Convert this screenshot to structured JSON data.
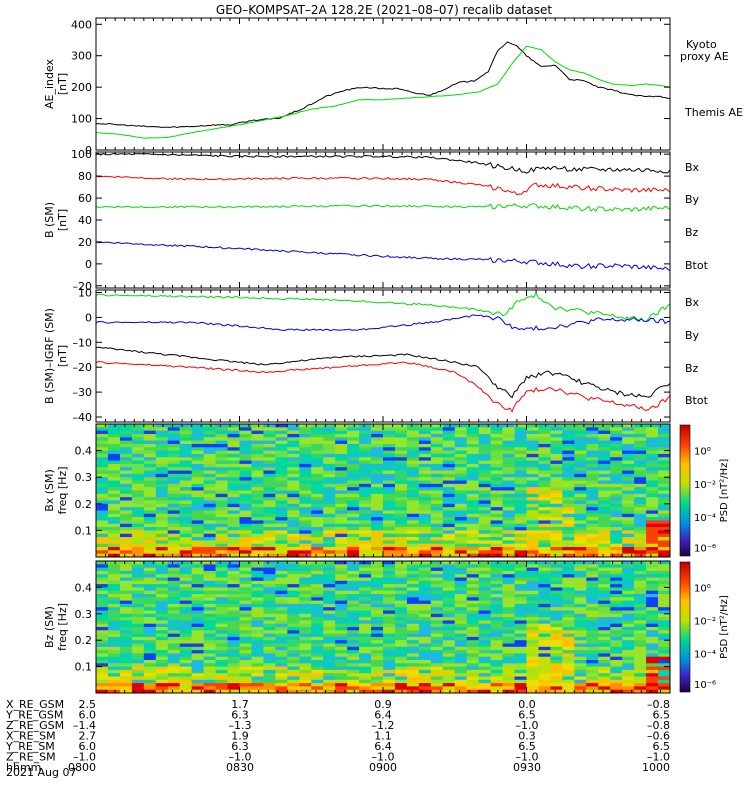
{
  "title": "GEO–KOMPSAT–2A 128.2E (2021–08–07) recalib dataset",
  "colors": {
    "black": "#000000",
    "red": "#ff0000",
    "green": "#00dd00",
    "blue": "#0000dd"
  },
  "chart_data": [
    {
      "type": "line",
      "ylabel": [
        "AE_index",
        "[nT]"
      ],
      "ylim": [
        0,
        420
      ],
      "yticks": [
        0,
        100,
        200,
        300,
        400
      ],
      "x_range": [
        "08:00",
        "10:00"
      ],
      "series": [
        {
          "name": "Themis AE",
          "color": "#000000",
          "points": [
            [
              0,
              85
            ],
            [
              5,
              80
            ],
            [
              10,
              75
            ],
            [
              15,
              72
            ],
            [
              20,
              75
            ],
            [
              25,
              80
            ],
            [
              28,
              80
            ],
            [
              33,
              95
            ],
            [
              38,
              100
            ],
            [
              43,
              130
            ],
            [
              48,
              170
            ],
            [
              52,
              190
            ],
            [
              56,
              200
            ],
            [
              60,
              195
            ],
            [
              63,
              195
            ],
            [
              67,
              180
            ],
            [
              70,
              175
            ],
            [
              73,
              195
            ],
            [
              76,
              215
            ],
            [
              79,
              220
            ],
            [
              82,
              250
            ],
            [
              84,
              315
            ],
            [
              86,
              345
            ],
            [
              88,
              330
            ],
            [
              90,
              300
            ],
            [
              93,
              265
            ],
            [
              96,
              270
            ],
            [
              99,
              225
            ],
            [
              102,
              220
            ],
            [
              105,
              200
            ],
            [
              108,
              190
            ],
            [
              112,
              175
            ],
            [
              115,
              170
            ],
            [
              118,
              170
            ],
            [
              120,
              165
            ]
          ]
        },
        {
          "name": "Kyoto proxy AE",
          "color": "#00dd00",
          "points": [
            [
              0,
              55
            ],
            [
              5,
              50
            ],
            [
              10,
              38
            ],
            [
              15,
              40
            ],
            [
              20,
              55
            ],
            [
              25,
              68
            ],
            [
              30,
              80
            ],
            [
              35,
              95
            ],
            [
              40,
              110
            ],
            [
              45,
              130
            ],
            [
              50,
              140
            ],
            [
              55,
              160
            ],
            [
              60,
              160
            ],
            [
              65,
              165
            ],
            [
              70,
              170
            ],
            [
              75,
              175
            ],
            [
              80,
              185
            ],
            [
              84,
              210
            ],
            [
              87,
              275
            ],
            [
              90,
              330
            ],
            [
              93,
              320
            ],
            [
              96,
              280
            ],
            [
              99,
              255
            ],
            [
              102,
              245
            ],
            [
              105,
              225
            ],
            [
              108,
              210
            ],
            [
              112,
              205
            ],
            [
              115,
              210
            ],
            [
              118,
              205
            ],
            [
              120,
              200
            ]
          ]
        }
      ],
      "legend": [
        "Kyoto proxy AE",
        "Themis AE"
      ]
    },
    {
      "type": "line",
      "ylabel": [
        "B (SM)",
        "[nT]"
      ],
      "ylim": [
        -22,
        102
      ],
      "yticks": [
        -20,
        0,
        20,
        40,
        60,
        80,
        100
      ],
      "series": [
        {
          "name": "Btot",
          "color": "#000000",
          "points": [
            [
              0,
              100
            ],
            [
              10,
              100
            ],
            [
              30,
              98
            ],
            [
              60,
              98
            ],
            [
              70,
              97
            ],
            [
              80,
              92
            ],
            [
              85,
              88
            ],
            [
              90,
              85
            ],
            [
              95,
              88
            ],
            [
              100,
              86
            ],
            [
              110,
              86
            ],
            [
              120,
              85
            ]
          ]
        },
        {
          "name": "Bz",
          "color": "#ff0000",
          "points": [
            [
              0,
              80
            ],
            [
              20,
              77
            ],
            [
              40,
              78
            ],
            [
              60,
              78
            ],
            [
              70,
              77
            ],
            [
              80,
              72
            ],
            [
              85,
              68
            ],
            [
              88,
              63
            ],
            [
              92,
              72
            ],
            [
              100,
              70
            ],
            [
              110,
              67
            ],
            [
              120,
              67
            ]
          ]
        },
        {
          "name": "By",
          "color": "#00dd00",
          "points": [
            [
              0,
              52
            ],
            [
              30,
              52
            ],
            [
              60,
              53
            ],
            [
              80,
              52
            ],
            [
              90,
              53
            ],
            [
              100,
              51
            ],
            [
              110,
              49
            ],
            [
              120,
              51
            ]
          ]
        },
        {
          "name": "Bx",
          "color": "#0000dd",
          "points": [
            [
              0,
              20
            ],
            [
              15,
              17
            ],
            [
              30,
              14
            ],
            [
              50,
              9
            ],
            [
              70,
              5
            ],
            [
              80,
              4
            ],
            [
              90,
              2
            ],
            [
              100,
              -2
            ],
            [
              110,
              -2
            ],
            [
              120,
              -5
            ]
          ]
        }
      ],
      "legend": [
        "Bx",
        "By",
        "Bz",
        "Btot"
      ]
    },
    {
      "type": "line",
      "ylabel": [
        "B (SM)–IGRF (SM)",
        "[nT]"
      ],
      "ylim": [
        -42,
        11
      ],
      "yticks": [
        -40,
        -30,
        -20,
        -10,
        0,
        10
      ],
      "series": [
        {
          "name": "By",
          "color": "#00dd00",
          "points": [
            [
              0,
              9
            ],
            [
              30,
              8
            ],
            [
              50,
              7
            ],
            [
              70,
              5
            ],
            [
              80,
              3
            ],
            [
              85,
              1
            ],
            [
              88,
              6
            ],
            [
              92,
              9
            ],
            [
              96,
              4
            ],
            [
              100,
              3
            ],
            [
              110,
              0
            ],
            [
              115,
              -1
            ],
            [
              120,
              5
            ]
          ]
        },
        {
          "name": "Bx",
          "color": "#0000dd",
          "points": [
            [
              0,
              -2
            ],
            [
              20,
              -2
            ],
            [
              40,
              -5
            ],
            [
              55,
              -5
            ],
            [
              70,
              -2
            ],
            [
              80,
              1
            ],
            [
              85,
              -1
            ],
            [
              88,
              -5
            ],
            [
              95,
              -4
            ],
            [
              105,
              -1
            ],
            [
              115,
              -1
            ],
            [
              120,
              -2
            ]
          ]
        },
        {
          "name": "Btot",
          "color": "#000000",
          "points": [
            [
              0,
              -12
            ],
            [
              20,
              -16
            ],
            [
              35,
              -19
            ],
            [
              50,
              -16
            ],
            [
              65,
              -15
            ],
            [
              75,
              -18
            ],
            [
              80,
              -20
            ],
            [
              84,
              -28
            ],
            [
              87,
              -32
            ],
            [
              90,
              -24
            ],
            [
              95,
              -22
            ],
            [
              100,
              -25
            ],
            [
              108,
              -30
            ],
            [
              115,
              -32
            ],
            [
              120,
              -26
            ]
          ]
        },
        {
          "name": "Bz",
          "color": "#ff0000",
          "points": [
            [
              0,
              -18
            ],
            [
              20,
              -20
            ],
            [
              35,
              -22
            ],
            [
              50,
              -20
            ],
            [
              65,
              -18
            ],
            [
              75,
              -22
            ],
            [
              80,
              -28
            ],
            [
              84,
              -35
            ],
            [
              87,
              -37
            ],
            [
              90,
              -30
            ],
            [
              95,
              -28
            ],
            [
              102,
              -32
            ],
            [
              110,
              -35
            ],
            [
              116,
              -37
            ],
            [
              120,
              -32
            ]
          ]
        }
      ],
      "legend": [
        "Bx",
        "By",
        "Bz",
        "Btot"
      ]
    },
    {
      "type": "heatmap",
      "ylabel": [
        "Bx (SM)",
        "freq [Hz]"
      ],
      "ylim": [
        0,
        0.5
      ],
      "yticks": [
        0.1,
        0.2,
        0.3,
        0.4
      ],
      "colorbar": {
        "label": "PSD [nT²/Hz]",
        "ticks": [
          "10⁰",
          "10⁻²",
          "10⁻⁴",
          "10⁻⁶"
        ]
      }
    },
    {
      "type": "heatmap",
      "ylabel": [
        "Bz (SM)",
        "freq [Hz]"
      ],
      "ylim": [
        0,
        0.5
      ],
      "yticks": [
        0.1,
        0.2,
        0.3,
        0.4
      ],
      "colorbar": {
        "label": "PSD [nT²/Hz]",
        "ticks": [
          "10⁰",
          "10⁻²",
          "10⁻⁴",
          "10⁻⁶"
        ]
      }
    }
  ],
  "ephemeris": {
    "rows": [
      {
        "label": "X_RE_GSM",
        "values": [
          "2.5",
          "1.7",
          "0.9",
          "0.0",
          "–0.8"
        ]
      },
      {
        "label": "Y_RE_GSM",
        "values": [
          "6.0",
          "6.3",
          "6.4",
          "6.5",
          "6.5"
        ]
      },
      {
        "label": "Z_RE_GSM",
        "values": [
          "–1.4",
          "–1.3",
          "–1.2",
          "–1.0",
          "–0.8"
        ]
      },
      {
        "label": "X_RE_SM",
        "values": [
          "2.7",
          "1.9",
          "1.1",
          "0.3",
          "–0.6"
        ]
      },
      {
        "label": "Y_RE_SM",
        "values": [
          "6.0",
          "6.3",
          "6.4",
          "6.5",
          "6.5"
        ]
      },
      {
        "label": "Z_RE_SM",
        "values": [
          "–1.0",
          "–1.0",
          "–1.0",
          "–1.0",
          "–1.0"
        ]
      },
      {
        "label": "hhmm",
        "values": [
          "0800",
          "0830",
          "0900",
          "0930",
          "1000"
        ]
      }
    ],
    "date": "2021 Aug 07"
  }
}
